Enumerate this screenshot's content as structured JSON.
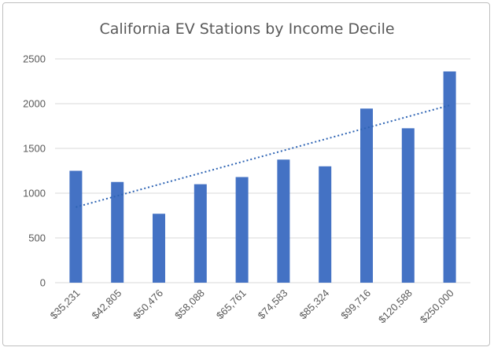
{
  "chart_data": {
    "type": "bar",
    "title": "California EV Stations by Income Decile",
    "categories": [
      "$35,231",
      "$42,805",
      "$50,476",
      "$58,088",
      "$65,761",
      "$74,583",
      "$85,324",
      "$99,716",
      "$120,588",
      "$250,000"
    ],
    "values": [
      1250,
      1125,
      770,
      1100,
      1180,
      1375,
      1300,
      1945,
      1725,
      2360
    ],
    "ylim": [
      0,
      2500
    ],
    "yticks": [
      0,
      500,
      1000,
      1500,
      2000,
      2500
    ],
    "grid": true,
    "legend": "none",
    "trendline": {
      "type": "linear",
      "style": "dotted"
    },
    "colors": {
      "bar": "#4472c4",
      "trendline": "#2e64b4",
      "grid": "#d9d9d9",
      "text": "#595959"
    }
  }
}
